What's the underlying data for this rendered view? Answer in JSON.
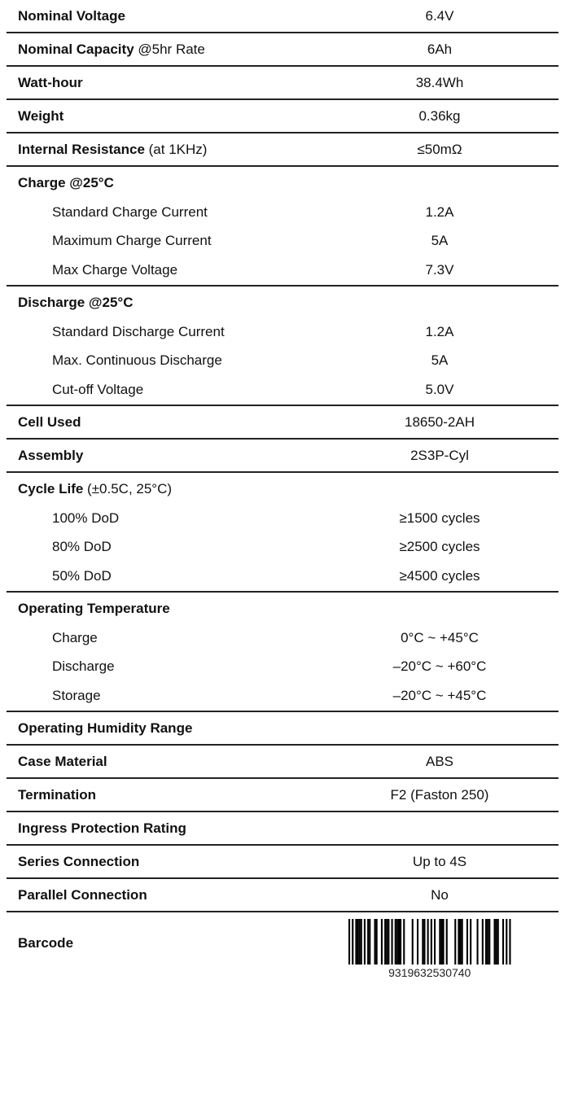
{
  "rows": [
    {
      "label": "Nominal Voltage",
      "value": "6.4V"
    },
    {
      "label": "Nominal Capacity",
      "note": "@5hr Rate",
      "value": "6Ah"
    },
    {
      "label": "Watt-hour",
      "value": "38.4Wh"
    },
    {
      "label": "Weight",
      "value": "0.36kg"
    },
    {
      "label": "Internal Resistance",
      "note": "(at 1KHz)",
      "value": "≤50mΩ"
    },
    {
      "label": "Charge @25°C",
      "items": [
        {
          "label": "Standard Charge Current",
          "value": "1.2A"
        },
        {
          "label": "Maximum Charge Current",
          "value": "5A"
        },
        {
          "label": "Max Charge Voltage",
          "value": "7.3V"
        }
      ]
    },
    {
      "label": "Discharge @25°C",
      "items": [
        {
          "label": "Standard Discharge Current",
          "value": "1.2A"
        },
        {
          "label": "Max. Continuous Discharge",
          "value": "5A"
        },
        {
          "label": "Cut-off Voltage",
          "value": "5.0V"
        }
      ]
    },
    {
      "label": "Cell Used",
      "value": "18650-2AH"
    },
    {
      "label": "Assembly",
      "value": "2S3P-Cyl"
    },
    {
      "label": "Cycle Life",
      "note": "(±0.5C, 25°C)",
      "items": [
        {
          "label": "100% DoD",
          "value": "≥1500 cycles"
        },
        {
          "label": "80% DoD",
          "value": "≥2500 cycles"
        },
        {
          "label": "50% DoD",
          "value": "≥4500 cycles"
        }
      ]
    },
    {
      "label": "Operating Temperature",
      "items": [
        {
          "label": "Charge",
          "value": "0°C ~ +45°C"
        },
        {
          "label": "Discharge",
          "value": "–20°C ~ +60°C"
        },
        {
          "label": "Storage",
          "value": "–20°C ~ +45°C"
        }
      ]
    },
    {
      "label": "Operating Humidity Range"
    },
    {
      "label": "Case Material",
      "value": "ABS"
    },
    {
      "label": "Termination",
      "value": "F2 (Faston 250)"
    },
    {
      "label": "Ingress Protection Rating"
    },
    {
      "label": "Series Connection",
      "value": "Up to 4S"
    },
    {
      "label": "Parallel Connection",
      "value": "No"
    }
  ],
  "barcode": {
    "label": "Barcode",
    "number": "9319632530740"
  }
}
